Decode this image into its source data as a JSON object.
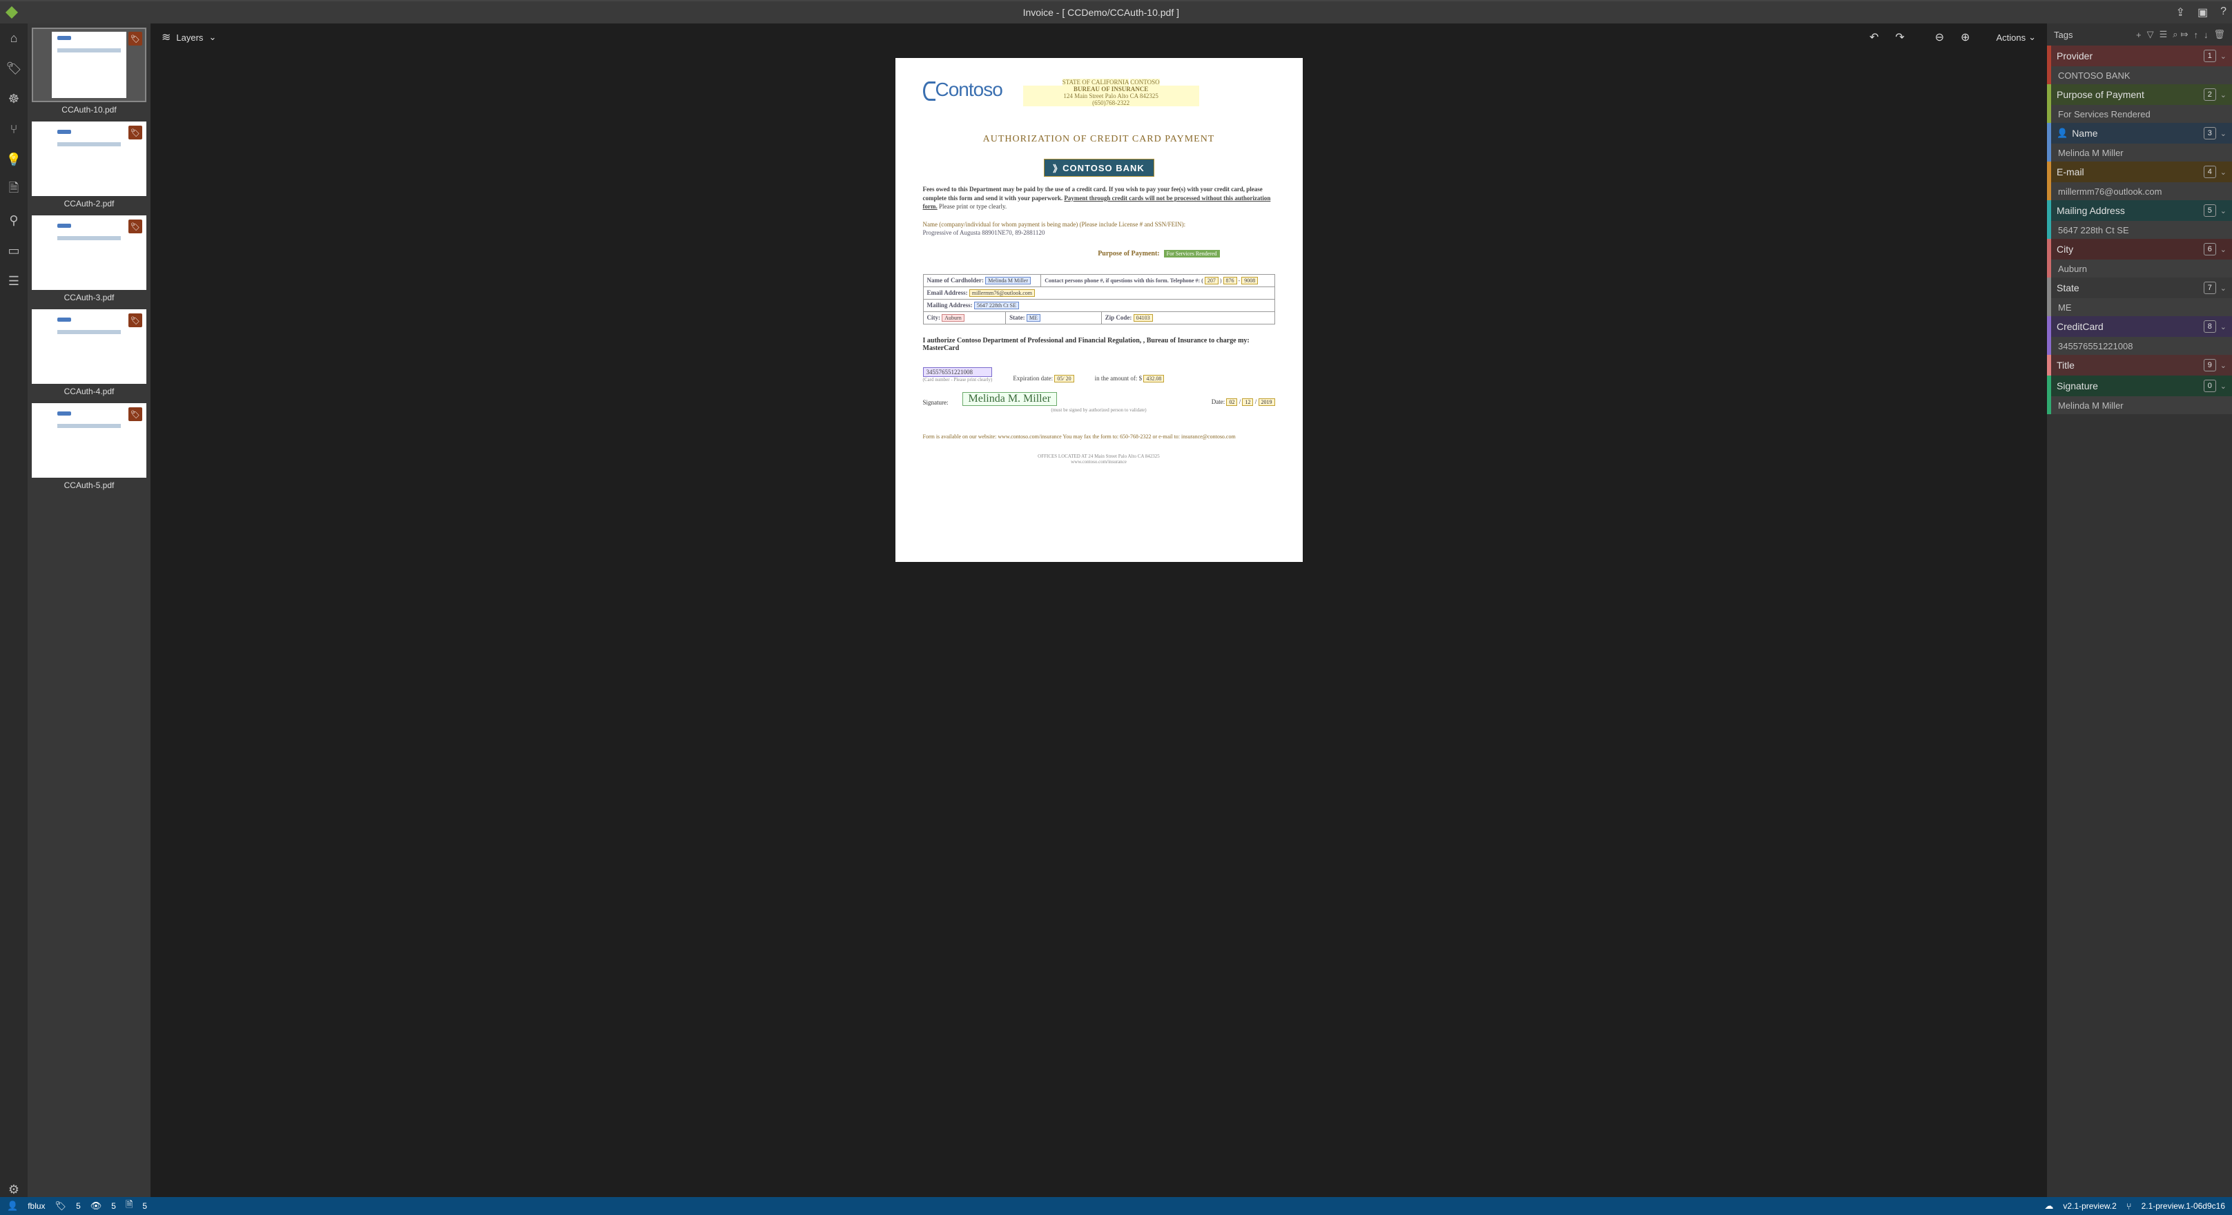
{
  "titlebar": {
    "title": "Invoice - [ CCDemo/CCAuth-10.pdf ]"
  },
  "toolbar": {
    "layers": "Layers",
    "actions": "Actions"
  },
  "thumbs": [
    {
      "label": "CCAuth-10.pdf",
      "selected": true
    },
    {
      "label": "CCAuth-2.pdf",
      "selected": false
    },
    {
      "label": "CCAuth-3.pdf",
      "selected": false
    },
    {
      "label": "CCAuth-4.pdf",
      "selected": false
    },
    {
      "label": "CCAuth-5.pdf",
      "selected": false
    }
  ],
  "doc": {
    "logo": "Contoso",
    "state1": "STATE OF CALIFORNIA",
    "state1b": "CONTOSO",
    "state2": "BUREAU OF INSURANCE",
    "state3": "124 Main Street Palo Alto CA 842325",
    "state4": "(650)768-2322",
    "title": "AUTHORIZATION OF CREDIT CARD PAYMENT",
    "bank": "CONTOSO BANK",
    "fees": "Fees owed to this Department may be paid by the use of a credit card. If you wish to pay your fee(s) with your credit card, please complete this form and send it with your paperwork. ",
    "fees_u": "Payment through credit cards will not be processed without this authorization form.",
    "fees_end": " Please print or type clearly.",
    "name_lbl": "Name (company/individual for whom payment is being made) (Please include License # and SSN/FEIN):",
    "name_val": "Progressive of Augusta  88901NE70,  89-2881120",
    "purpose_lbl": "Purpose of Payment:",
    "purpose_val": "For Services Rendered",
    "t_cardholder": "Name of Cardholder:",
    "t_cardholder_v": "Melinda M Miller",
    "t_contact": "Contact persons phone #, if questions with this form. Telephone #: (",
    "t_phone1": "207",
    "t_phone2": "876",
    "t_phone3": "9008",
    "t_email": "Email Address:",
    "t_email_v": "millermm76@outlook.com",
    "t_mail": "Mailing Address:",
    "t_mail_v": "5647 228th Ct SE",
    "t_city": "City:",
    "t_city_v": "Auburn",
    "t_state": "State:",
    "t_state_v": "ME",
    "t_zip": "Zip Code:",
    "t_zip_v": "04103",
    "auth": "I authorize Contoso Department of Professional and Financial Regulation, , Bureau of Insurance to charge my:   MasterCard",
    "cc": "345576551221008",
    "cc_note": "(Card number - Please print clearly)",
    "exp_lbl": "Expiration date:",
    "exp_v": "05/ 20",
    "amt_lbl": "in the amount of: $",
    "amt_v": "432.08",
    "sig_lbl": "Signature:",
    "sig_v": "Melinda M. Miller",
    "date_lbl": "Date:",
    "date_m": "02",
    "date_d": "12",
    "date_y": "2019",
    "sig_note": "(must be signed by authorized person to validate)",
    "footer1": "Form is available on our website:  www.contoso.com/insurance You may fax the form to: 650-768-2322 or e-mail to:  insurance@contoso.com",
    "footer2": "OFFICES LOCATED AT 24 Main Street Palo Alto CA 842325",
    "footer3": "www.contoso.com/insurance"
  },
  "tags_label": "Tags",
  "tags": [
    {
      "name": "Provider",
      "count": "1",
      "value": "CONTOSO BANK",
      "color": "#b04030",
      "bg": "#5a3030"
    },
    {
      "name": "Purpose of Payment",
      "count": "2",
      "value": "For Services Rendered",
      "color": "#8aaa40",
      "bg": "#3a4a2a"
    },
    {
      "name": "Name",
      "count": "3",
      "value": "Melinda M Miller",
      "color": "#5a8acc",
      "bg": "#2a3a4a",
      "person": true
    },
    {
      "name": "E-mail",
      "count": "4",
      "value": "millermm76@outlook.com",
      "color": "#cc8a30",
      "bg": "#4a3a1a"
    },
    {
      "name": "Mailing Address",
      "count": "5",
      "value": "5647 228th Ct SE",
      "color": "#30aaaa",
      "bg": "#204040"
    },
    {
      "name": "City",
      "count": "6",
      "value": "Auburn",
      "color": "#cc6a6a",
      "bg": "#4a2a2a"
    },
    {
      "name": "State",
      "count": "7",
      "value": "ME",
      "color": "#888888",
      "bg": "#383838"
    },
    {
      "name": "CreditCard",
      "count": "8",
      "value": "345576551221008",
      "color": "#8a6acc",
      "bg": "#3a3050"
    },
    {
      "name": "Title",
      "count": "9",
      "value": null,
      "color": "#e08080",
      "bg": "#503030"
    },
    {
      "name": "Signature",
      "count": "0",
      "value": "Melinda M Miller",
      "color": "#30aa70",
      "bg": "#204030"
    }
  ],
  "status": {
    "user": "fblux",
    "tag_count": "5",
    "view_count": "5",
    "doc_count": "5",
    "ver1": "v2.1-preview.2",
    "ver2": "2.1-preview.1-06d9c16"
  }
}
